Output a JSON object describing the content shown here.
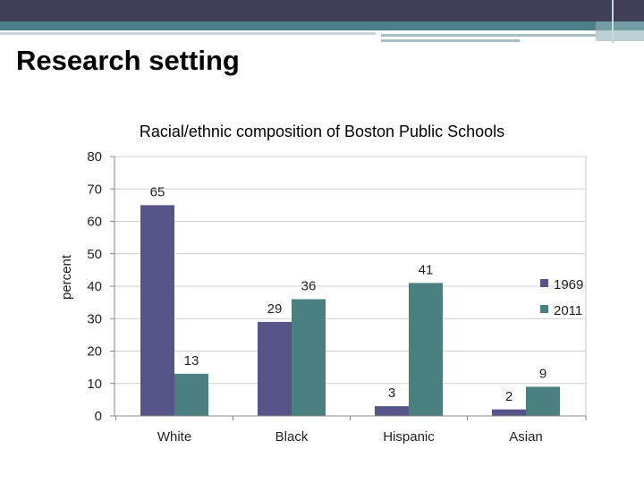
{
  "slide": {
    "title": "Research setting"
  },
  "chart_data": {
    "type": "bar",
    "title": "Racial/ethnic composition of Boston Public Schools",
    "xlabel": "",
    "ylabel": "percent",
    "categories": [
      "White",
      "Black",
      "Hispanic",
      "Asian"
    ],
    "series": [
      {
        "name": "1969",
        "values": [
          65,
          29,
          3,
          2
        ],
        "color": "#565489"
      },
      {
        "name": "2011",
        "values": [
          13,
          36,
          41,
          9
        ],
        "color": "#4a8080"
      }
    ],
    "ylim": [
      0,
      80
    ],
    "yticks": [
      0,
      10,
      20,
      30,
      40,
      50,
      60,
      70,
      80
    ],
    "grid": true,
    "legend_position": "right",
    "data_labels": true
  }
}
